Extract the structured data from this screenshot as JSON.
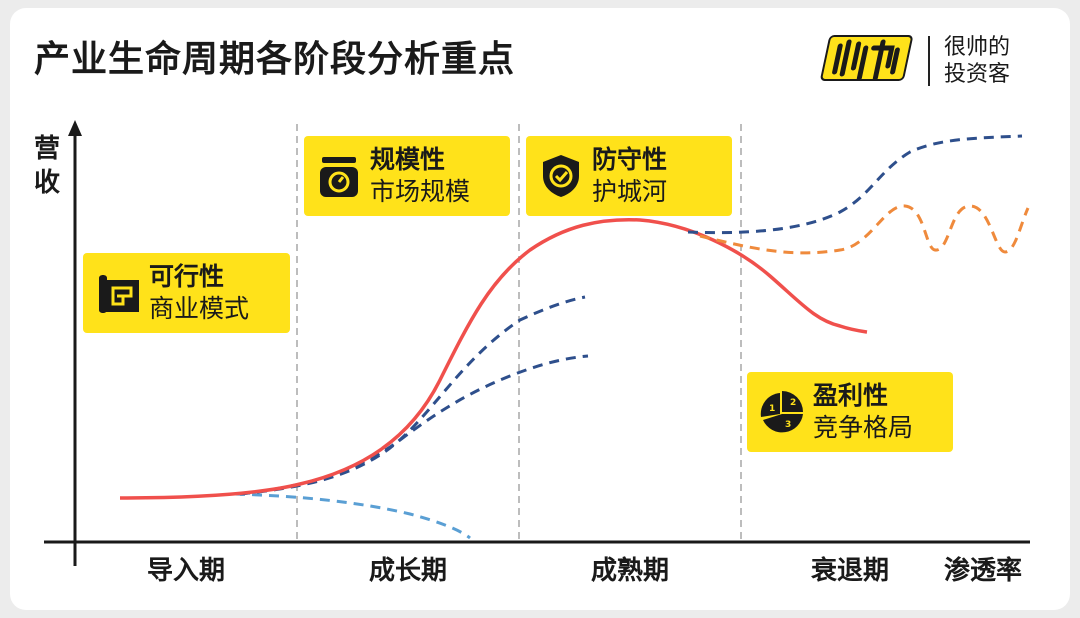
{
  "title": "产业生命周期各阶段分析重点",
  "brand": {
    "logo_icon": "shuai-logo-icon",
    "line1": "很帅的",
    "line2": "投资客"
  },
  "y_axis_label": "营收",
  "x_axis_label": "渗透率",
  "stages": [
    "导入期",
    "成长期",
    "成熟期",
    "衰退期"
  ],
  "tags": [
    {
      "icon": "map-blueprint-icon",
      "title": "可行性",
      "subtitle": "商业模式"
    },
    {
      "icon": "scale-icon",
      "title": "规模性",
      "subtitle": "市场规模"
    },
    {
      "icon": "shield-check-icon",
      "title": "防守性",
      "subtitle": "护城河"
    },
    {
      "icon": "pie-ranking-icon",
      "title": "盈利性",
      "subtitle": "竞争格局"
    }
  ],
  "colors": {
    "main_curve": "#f0504c",
    "alt_curves": "#2e4f8c",
    "decline_curve": "#5a9fd4",
    "mature_variant": "#ef8a3c",
    "tag_bg": "#ffe21a",
    "divider": "#bdbdbd"
  }
}
